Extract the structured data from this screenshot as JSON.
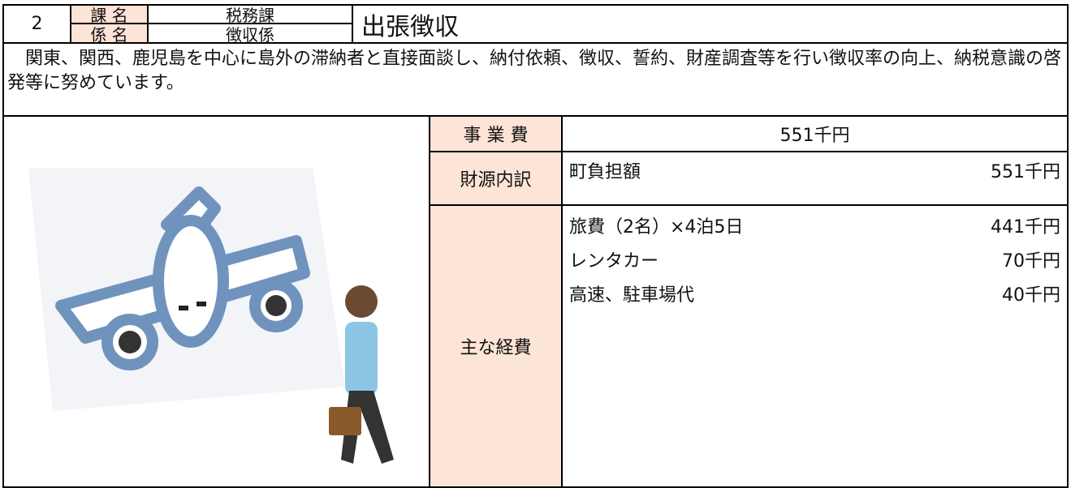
{
  "header": {
    "number": "2",
    "rows": [
      {
        "label": "課 名",
        "value": "税務課"
      },
      {
        "label": "係 名",
        "value": "徴収係"
      }
    ],
    "title": "出張徴収"
  },
  "description": "関東、関西、鹿児島を中心に島外の滞納者と直接面談し、納付依頼、徴収、誓約、財産調査等を行い徴収率の向上、納税意識の啓発等に努めています。",
  "details": {
    "cost": {
      "label": "事 業 費",
      "value": "551千円"
    },
    "funding": {
      "label": "財源内訳",
      "items": [
        {
          "name": "町負担額",
          "amount": "551千円"
        }
      ]
    },
    "expenses": {
      "label": "主な経費",
      "items": [
        {
          "name": "旅費（2名）×4泊5日",
          "amount": "441千円"
        },
        {
          "name": "レンタカー",
          "amount": "70千円"
        },
        {
          "name": "高速、駐車場代",
          "amount": "40千円"
        }
      ]
    }
  }
}
